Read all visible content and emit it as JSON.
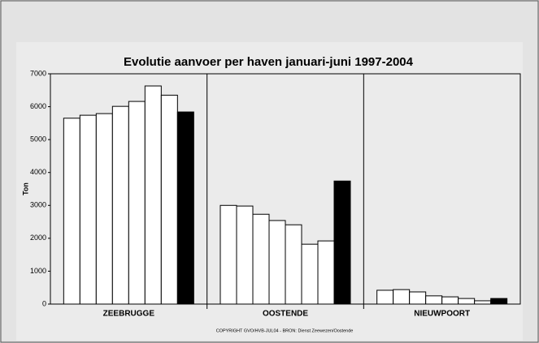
{
  "chart_data": {
    "type": "bar",
    "title": "Evolutie aanvoer per haven januari-juni 1997-2004",
    "y_label": "Ton",
    "footnote": "COPYRIGHT GVO/HVB-JUL04 - BRON: Dienst Zeewezen/Oostende",
    "categories": [
      "ZEEBRUGGE",
      "OOSTENDE",
      "NIEUWPOORT"
    ],
    "series": [
      {
        "color": "#ffffff",
        "values": [
          5650,
          3000,
          420
        ]
      },
      {
        "color": "#ffffff",
        "values": [
          5740,
          2980,
          440
        ]
      },
      {
        "color": "#ffffff",
        "values": [
          5790,
          2730,
          370
        ]
      },
      {
        "color": "#ffffff",
        "values": [
          6010,
          2540,
          250
        ]
      },
      {
        "color": "#ffffff",
        "values": [
          6160,
          2410,
          220
        ]
      },
      {
        "color": "#ffffff",
        "values": [
          6630,
          1820,
          170
        ]
      },
      {
        "color": "#ffffff",
        "values": [
          6350,
          1920,
          100
        ]
      },
      {
        "color": "#000000",
        "values": [
          5840,
          3740,
          170
        ]
      }
    ],
    "ylim": [
      0,
      7000
    ],
    "yticks": [
      0,
      1000,
      2000,
      3000,
      4000,
      5000,
      6000,
      7000
    ]
  }
}
